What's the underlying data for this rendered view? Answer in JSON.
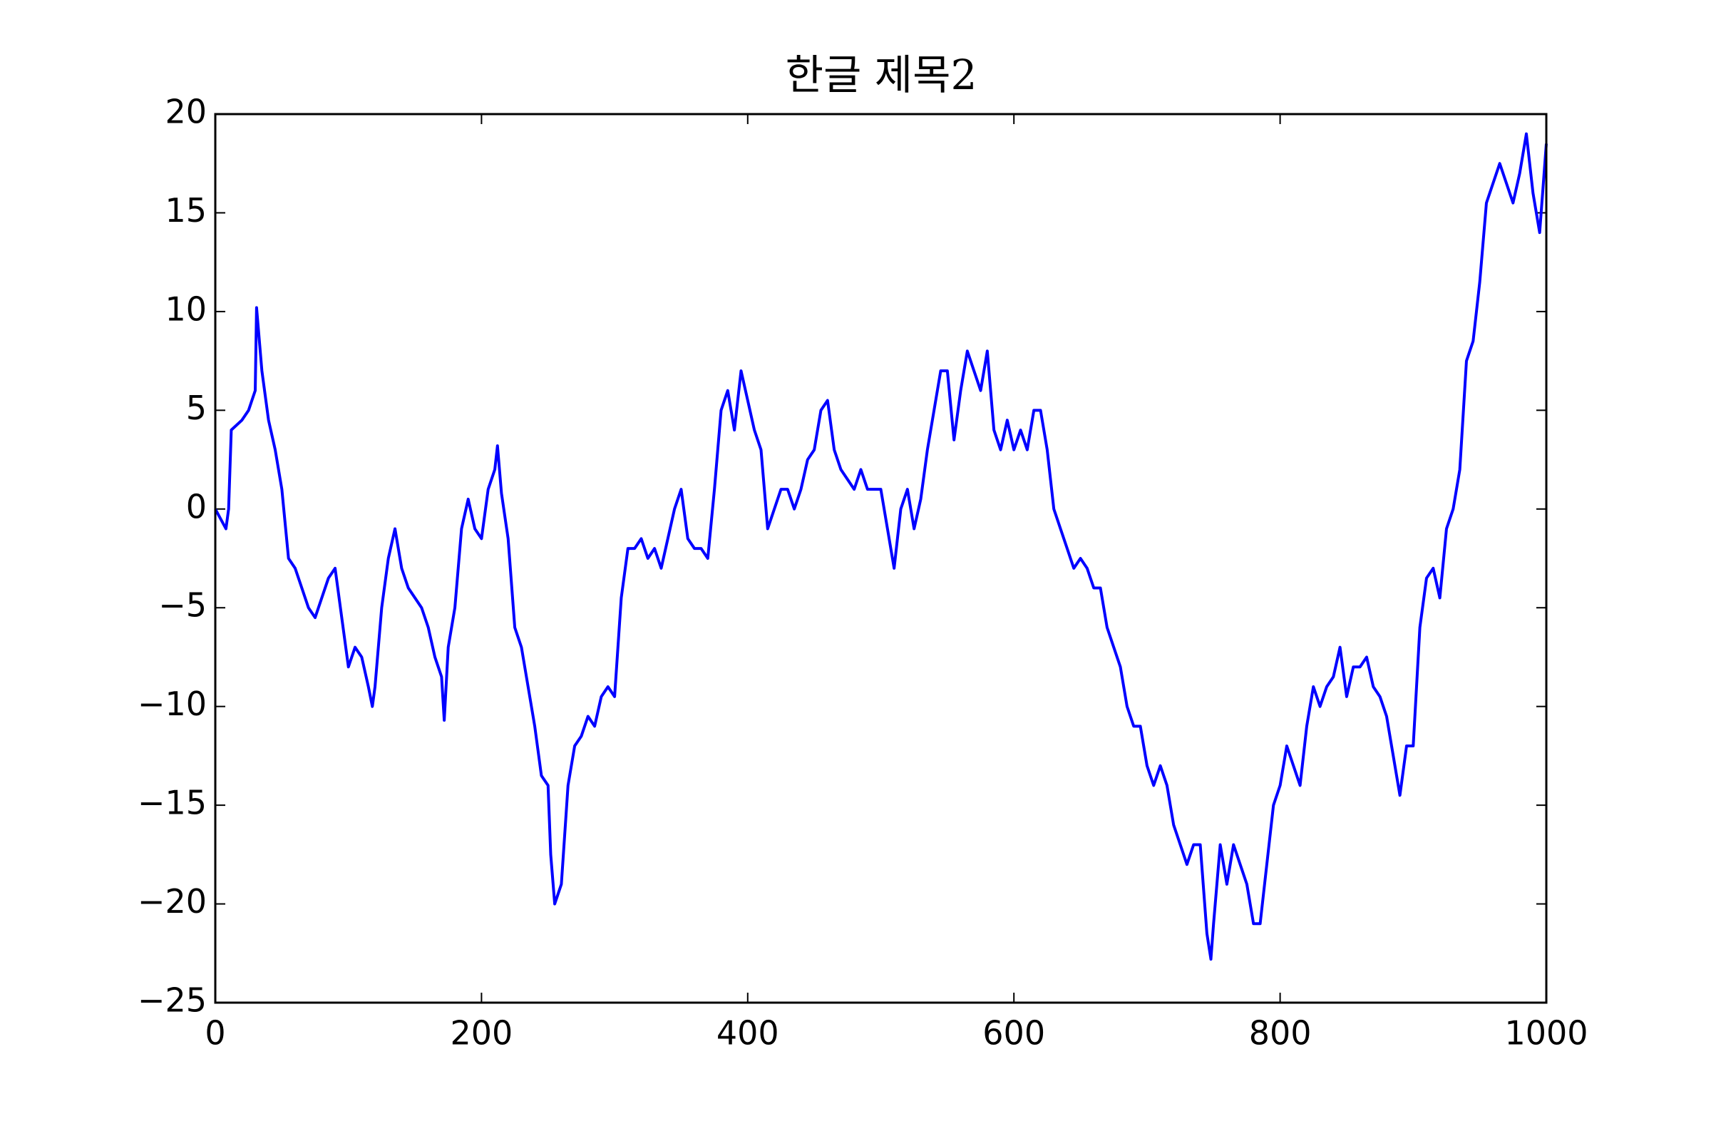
{
  "chart_data": {
    "type": "line",
    "title": "한글 제목2",
    "x": [
      0,
      8,
      10,
      12,
      20,
      25,
      30,
      31,
      35,
      40,
      45,
      50,
      55,
      60,
      65,
      70,
      75,
      80,
      85,
      90,
      95,
      100,
      105,
      110,
      115,
      118,
      120,
      125,
      130,
      135,
      140,
      145,
      150,
      155,
      160,
      165,
      170,
      172,
      175,
      180,
      185,
      190,
      195,
      200,
      205,
      210,
      212,
      215,
      220,
      225,
      230,
      235,
      240,
      245,
      250,
      252,
      255,
      260,
      265,
      270,
      275,
      280,
      285,
      290,
      295,
      300,
      305,
      310,
      315,
      320,
      325,
      330,
      335,
      340,
      345,
      350,
      355,
      360,
      365,
      370,
      375,
      380,
      385,
      390,
      395,
      400,
      405,
      410,
      415,
      420,
      425,
      430,
      435,
      440,
      445,
      450,
      455,
      460,
      465,
      470,
      475,
      480,
      485,
      490,
      495,
      500,
      505,
      510,
      515,
      520,
      525,
      530,
      535,
      540,
      545,
      550,
      555,
      560,
      565,
      570,
      575,
      580,
      585,
      590,
      595,
      600,
      605,
      610,
      615,
      620,
      625,
      630,
      635,
      640,
      645,
      650,
      655,
      660,
      665,
      670,
      675,
      680,
      685,
      690,
      695,
      700,
      705,
      710,
      715,
      720,
      725,
      730,
      735,
      740,
      745,
      748,
      750,
      755,
      760,
      765,
      770,
      775,
      780,
      785,
      790,
      795,
      800,
      805,
      810,
      815,
      820,
      825,
      830,
      835,
      840,
      845,
      850,
      855,
      860,
      865,
      870,
      875,
      880,
      885,
      890,
      895,
      900,
      905,
      910,
      915,
      920,
      925,
      930,
      935,
      940,
      945,
      950,
      955,
      960,
      965,
      970,
      975,
      980,
      985,
      990,
      995,
      1000
    ],
    "series": [
      {
        "color": "#0000ff",
        "values": [
          0,
          -1,
          0,
          4,
          4.5,
          5,
          6,
          10.2,
          7,
          4.5,
          3,
          1,
          -2.5,
          -3,
          -4,
          -5,
          -5.5,
          -4.5,
          -3.5,
          -3,
          -5.5,
          -8,
          -7,
          -7.5,
          -9,
          -10,
          -9,
          -5,
          -2.5,
          -1,
          -3,
          -4,
          -4.5,
          -5,
          -6,
          -7.5,
          -8.5,
          -10.7,
          -7,
          -5,
          -1,
          0.5,
          -1,
          -1.5,
          1,
          2,
          3.2,
          0.8,
          -1.5,
          -6,
          -7,
          -9,
          -11,
          -13.5,
          -14,
          -17.5,
          -20,
          -19,
          -14,
          -12,
          -11.5,
          -10.5,
          -11,
          -9.5,
          -9,
          -9.5,
          -4.5,
          -2,
          -2,
          -1.5,
          -2.5,
          -2,
          -3,
          -1.5,
          0,
          1,
          -1.5,
          -2,
          -2,
          -2.5,
          1,
          5,
          6,
          4,
          7,
          5.5,
          4,
          3,
          -1,
          0,
          1,
          1,
          0,
          1,
          2.5,
          3,
          5,
          5.5,
          3,
          2,
          1.5,
          1,
          2,
          1,
          1,
          1,
          -1,
          -3,
          0,
          1,
          -1,
          0.5,
          3,
          5,
          7,
          7,
          3.5,
          6,
          8,
          7,
          6,
          8,
          4,
          3,
          4.5,
          3,
          4,
          3,
          5,
          5,
          3,
          0,
          -1,
          -2,
          -3,
          -2.5,
          -3,
          -4,
          -4,
          -6,
          -7,
          -8,
          -10,
          -11,
          -11,
          -13,
          -14,
          -13,
          -14,
          -16,
          -17,
          -18,
          -17,
          -17,
          -21.5,
          -22.8,
          -21,
          -17,
          -19,
          -17,
          -18,
          -19,
          -21,
          -21,
          -18,
          -15,
          -14,
          -12,
          -13,
          -14,
          -11,
          -9,
          -10,
          -9,
          -8.5,
          -7,
          -9.5,
          -8,
          -8,
          -7.5,
          -9,
          -9.5,
          -10.5,
          -12.5,
          -14.5,
          -12,
          -12,
          -6,
          -3.5,
          -3,
          -4.5,
          -1,
          0,
          2,
          7.5,
          8.5,
          11.5,
          15.5,
          16.5,
          17.5,
          16.5,
          15.5,
          17,
          19,
          16,
          14,
          18.5
        ]
      }
    ],
    "xlim": [
      0,
      1000
    ],
    "xticks": [
      0,
      200,
      400,
      600,
      800,
      1000
    ],
    "ylim": [
      -25,
      20
    ],
    "yticks": [
      {
        "value": -25,
        "label": "−25"
      },
      {
        "value": -20,
        "label": "−20"
      },
      {
        "value": -15,
        "label": "−15"
      },
      {
        "value": -10,
        "label": "−10"
      },
      {
        "value": -5,
        "label": "−5"
      },
      0,
      5,
      10,
      15,
      20
    ]
  }
}
